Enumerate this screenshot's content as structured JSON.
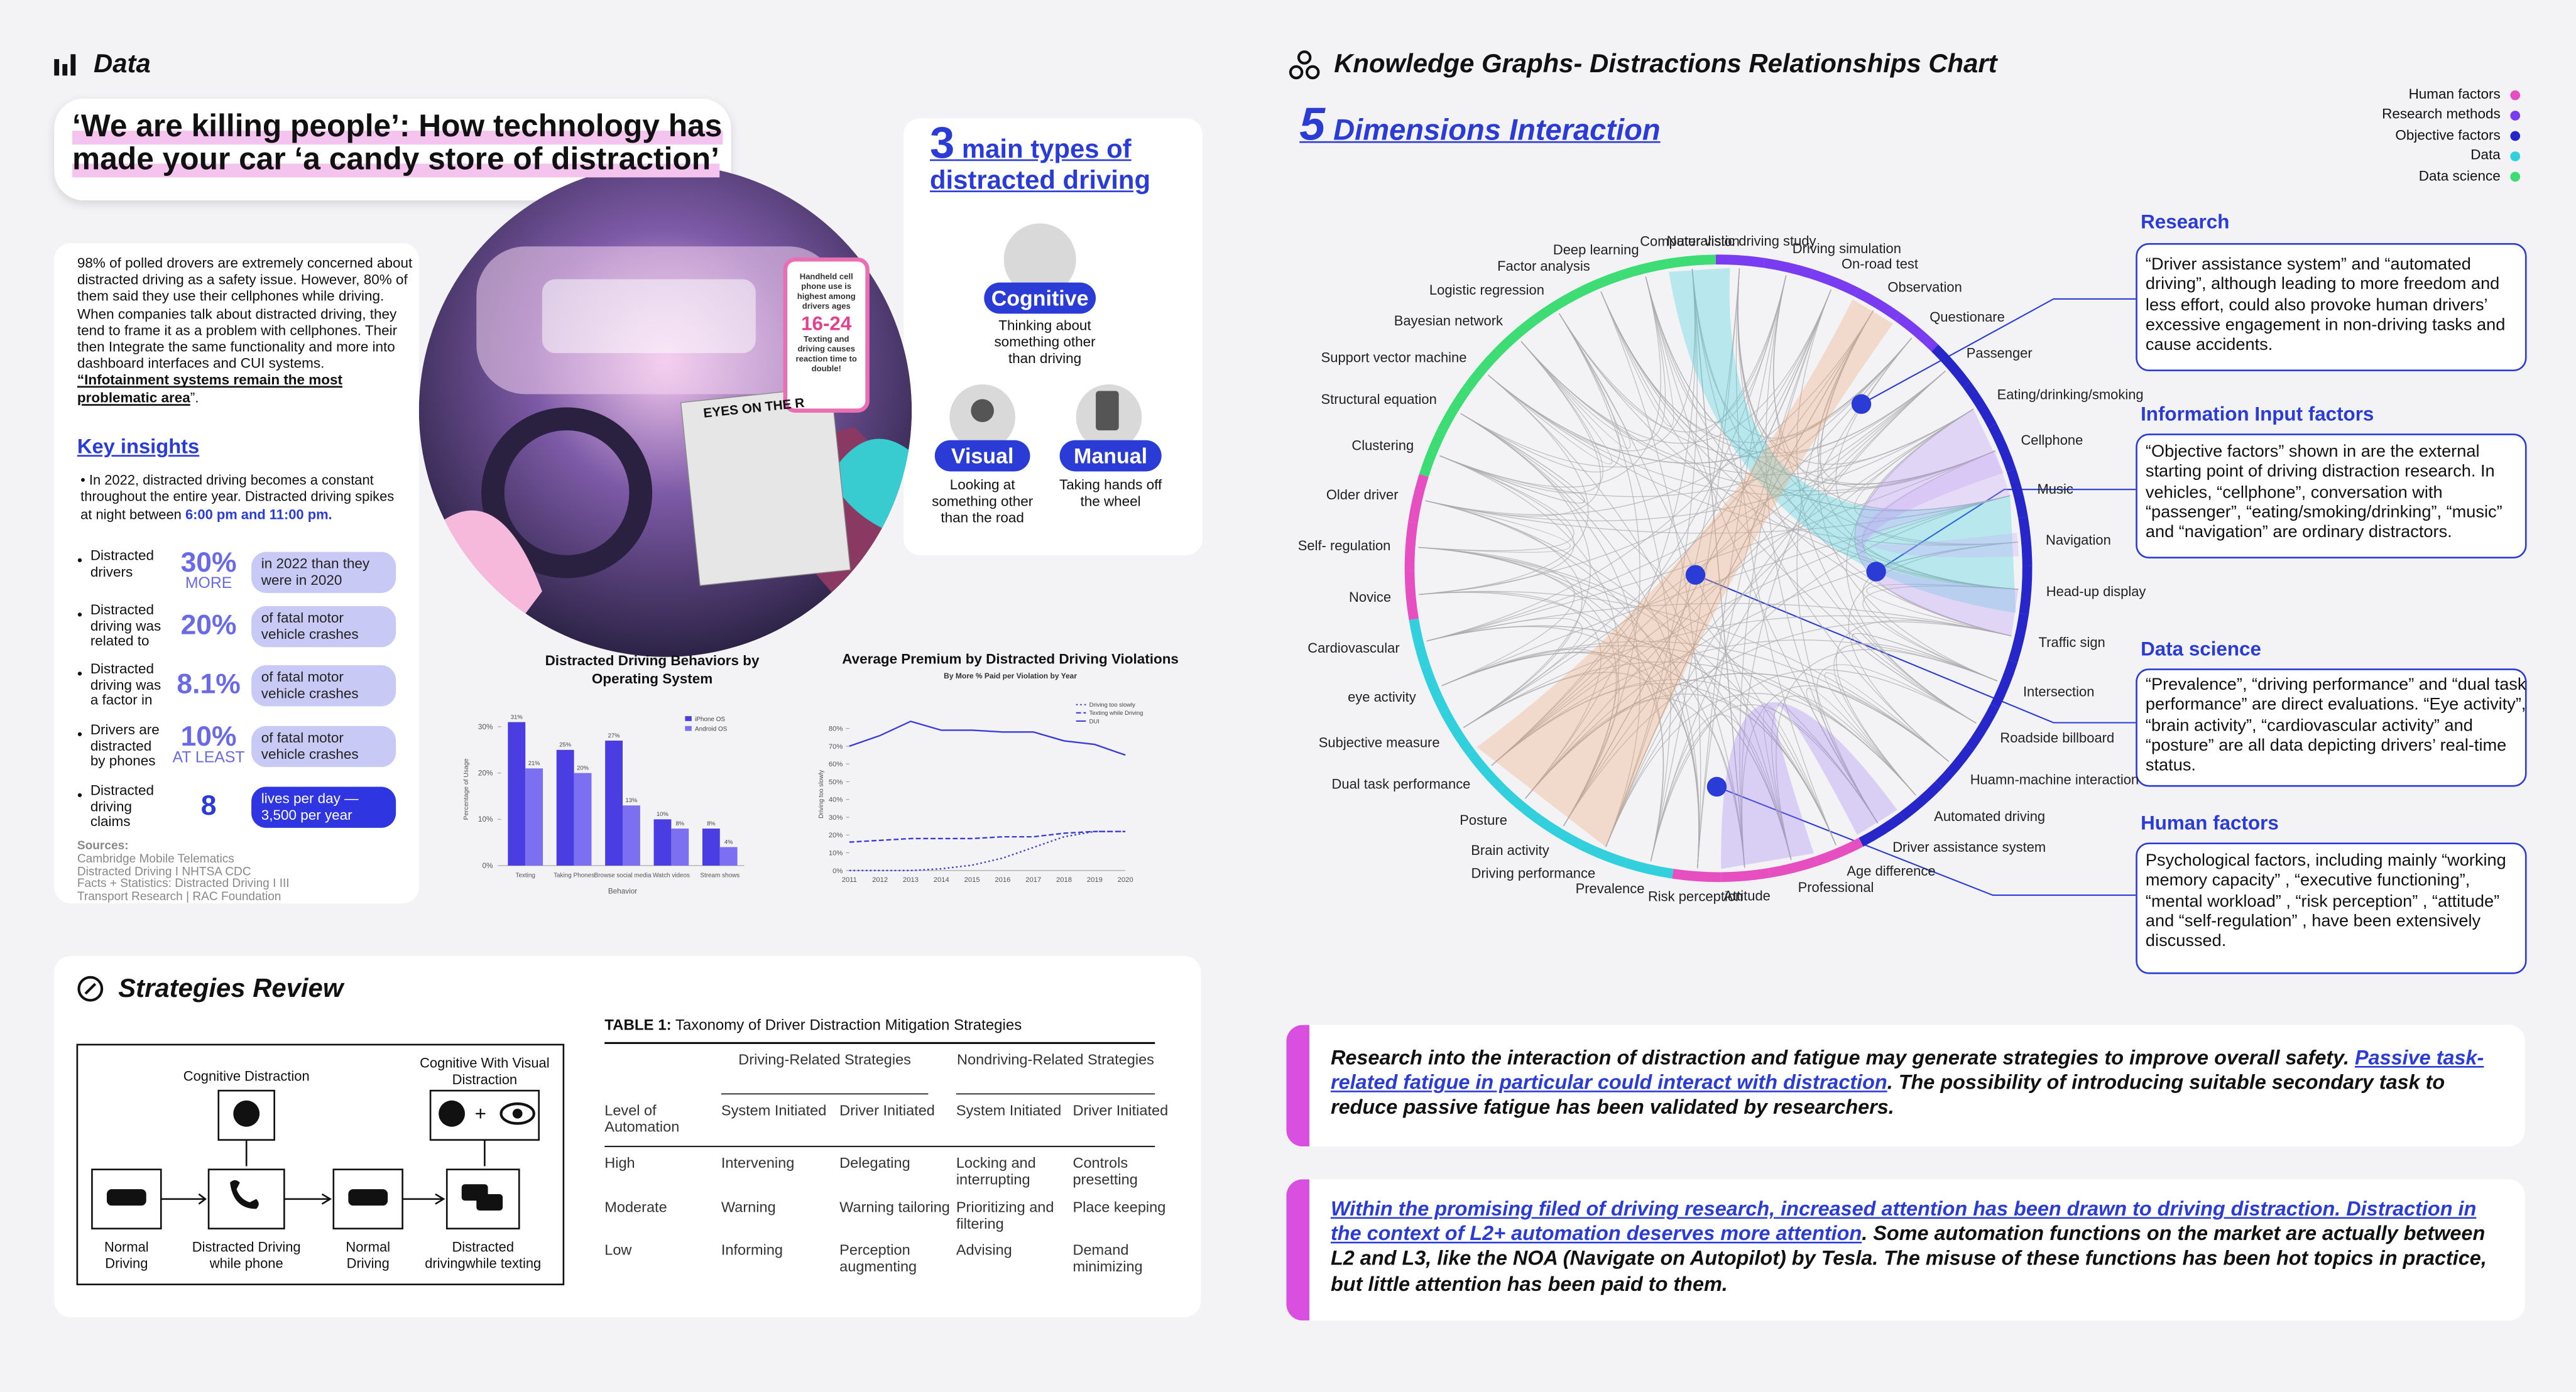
{
  "data_section": {
    "title": "Data",
    "headline": [
      "‘We are killing people’: How technology has",
      "made your car ‘a candy store of distraction’"
    ],
    "intro": {
      "text": "98% of polled drovers are extremely concerned about distracted driving as a safety issue. However, 80% of them said they use their cellphones while driving.\nWhen companies talk about distracted driving, they tend to frame it as a problem with cellphones. Their then Integrate the same functionality and more into dashboard interfaces and CUI systems. ",
      "quote": "“Infotainment systems remain the most problematic area",
      "end": "”."
    },
    "key_insights": {
      "title": "Key insights",
      "text": "In 2022, distracted driving becomes a constant throughout the entire year. Distracted driving spikes at night between ",
      "highlight": "6:00 pm and 11:00 pm."
    },
    "stats": [
      {
        "label": "Distracted drivers",
        "value": "30%",
        "sub": "MORE",
        "note": "in 2022 than they were in 2020"
      },
      {
        "label": "Distracted driving was related to",
        "value": "20%",
        "note": "of fatal motor vehicle crashes"
      },
      {
        "label": "Distracted driving was a factor in",
        "value": "8.1%",
        "note": "of fatal motor vehicle crashes"
      },
      {
        "label": "Drivers are distracted by phones",
        "value": "10%",
        "sub": "AT LEAST",
        "note": "of fatal motor vehicle crashes"
      },
      {
        "label": "Distracted driving claims",
        "value": "8",
        "note": "lives per day — 3,500 per year"
      }
    ],
    "sources": {
      "title": "Sources:",
      "items": [
        "Cambridge Mobile Telematics",
        "Distracted Driving I NHTSA CDC",
        "Facts + Statistics: Distracted Driving I III",
        "Transport Research | RAC Foundation"
      ]
    }
  },
  "illustration": {
    "phone_card": [
      "Handheld cell phone use is highest among drivers ages",
      "16-24",
      "Texting and driving causes reaction time to double!"
    ],
    "newspaper": "EYES ON THE R"
  },
  "types": {
    "count": "3",
    "title": "main types of distracted driving",
    "items": [
      {
        "name": "Cognitive",
        "desc": "Thinking about something other than driving"
      },
      {
        "name": "Visual",
        "desc": "Looking at something other than the road"
      },
      {
        "name": "Manual",
        "desc": "Taking hands off the wheel"
      }
    ]
  },
  "chart_data": [
    {
      "type": "bar",
      "title": "Distracted Driving Behaviors by Operating System",
      "xlabel": "Behavior",
      "ylabel": "Percentage of Usage",
      "categories": [
        "Texting",
        "Taking Phones",
        "Browse social media",
        "Watch videos",
        "Stream shows"
      ],
      "series": [
        {
          "name": "iPhone OS",
          "color": "#4a3ee3",
          "values": [
            31,
            25,
            27,
            10,
            8
          ],
          "value_labels": [
            "31%",
            "25%",
            "27%",
            "10%",
            "8%"
          ]
        },
        {
          "name": "Android OS",
          "color": "#7c70f0",
          "values": [
            21,
            20,
            13,
            8,
            4
          ],
          "value_labels": [
            "21%",
            "20%",
            "13%",
            "8%",
            "4%"
          ]
        }
      ],
      "ylim": [
        0,
        33
      ],
      "yticks": [
        {
          "value": 0,
          "label": "0%"
        },
        {
          "value": 10,
          "label": "10%"
        },
        {
          "value": 20,
          "label": "20%"
        },
        {
          "value": 30,
          "label": "30%"
        }
      ],
      "legend": "upper right"
    },
    {
      "type": "line",
      "title": "Average Premium by Distracted Driving Violations",
      "subtitle": "By More % Paid per Violation by Year",
      "ylabel": "Driving too slowly",
      "categories": [
        "2011",
        "2012",
        "2013",
        "2014",
        "2015",
        "2016",
        "2017",
        "2018",
        "2019",
        "2020"
      ],
      "series": [
        {
          "name": "Driving too slowly",
          "color": "#3b3bdc",
          "dash": "1 1.5",
          "values": [
            0,
            0,
            0,
            1,
            3,
            7,
            13,
            19,
            22,
            22
          ]
        },
        {
          "name": "Texting while Driving",
          "color": "#3b3bdc",
          "dash": "3 1.5",
          "values": [
            16,
            17,
            18,
            18,
            18,
            19,
            19,
            21,
            22,
            22
          ]
        },
        {
          "name": "DUI",
          "color": "#3b3bdc",
          "dash": "",
          "values": [
            70,
            76,
            84,
            79,
            79,
            78,
            78,
            73,
            71,
            65
          ]
        }
      ],
      "ylim": [
        0,
        86
      ],
      "yticks": [
        {
          "value": 0,
          "label": "0%"
        },
        {
          "value": 10,
          "label": "10%"
        },
        {
          "value": 20,
          "label": "20%"
        },
        {
          "value": 30,
          "label": "30%"
        },
        {
          "value": 40,
          "label": "40%"
        },
        {
          "value": 50,
          "label": "50%"
        },
        {
          "value": 60,
          "label": "60%"
        },
        {
          "value": 70,
          "label": "70%"
        },
        {
          "value": 80,
          "label": "80%"
        }
      ],
      "legend": "upper right"
    }
  ],
  "strategies": {
    "title": "Strategies Review",
    "diagram": {
      "cognitive": "Cognitive Distraction",
      "cognitive_visual": "Cognitive With Visual Distraction",
      "steps": [
        "Normal Driving",
        "Distracted Driving while phone",
        "Normal Driving",
        "Distracted drivingwhile texting"
      ]
    },
    "table": {
      "label": "TABLE 1:",
      "caption": " Taxonomy of Driver Distraction Mitigation Strategies",
      "groups": [
        "Driving-Related Strategies",
        "Nondriving-Related Strategies"
      ],
      "columns": [
        "Level of Automation",
        "System Initiated",
        "Driver Initiated",
        "System Initiated",
        "Driver Initiated"
      ],
      "rows": [
        [
          "High",
          "Intervening",
          "Delegating",
          "Locking and interrupting",
          "Controls presetting"
        ],
        [
          "Moderate",
          "Warning",
          "Warning tailoring",
          "Prioritizing and filtering",
          "Place keeping"
        ],
        [
          "Low",
          "Informing",
          "Perception augmenting",
          "Advising",
          "Demand minimizing"
        ]
      ]
    }
  },
  "knowledge_graph": {
    "title": "Knowledge Graphs- Distractions Relationships Chart",
    "number": "5",
    "subtitle": "Dimensions Interaction",
    "groups": [
      {
        "name": "Human factors",
        "color": "#e64fc0"
      },
      {
        "name": "Research methods",
        "color": "#7a3cf0"
      },
      {
        "name": "Objective factors",
        "color": "#2727c9"
      },
      {
        "name": "Data",
        "color": "#31d0dc"
      },
      {
        "name": "Data science",
        "color": "#3ddc74"
      }
    ],
    "nodes": [
      {
        "label": "Naturalistic driving study",
        "group": "Research methods"
      },
      {
        "label": "Driving simulation",
        "group": "Research methods"
      },
      {
        "label": "On-road test",
        "group": "Research methods"
      },
      {
        "label": "Observation",
        "group": "Research methods"
      },
      {
        "label": "Questionare",
        "group": "Research methods"
      },
      {
        "label": "Passenger",
        "group": "Objective factors"
      },
      {
        "label": "Eating/drinking/smoking",
        "group": "Objective factors"
      },
      {
        "label": "Cellphone",
        "group": "Objective factors"
      },
      {
        "label": "Music",
        "group": "Objective factors"
      },
      {
        "label": "Navigation",
        "group": "Objective factors"
      },
      {
        "label": "Head-up display",
        "group": "Objective factors"
      },
      {
        "label": "Traffic sign",
        "group": "Objective factors"
      },
      {
        "label": "Intersection",
        "group": "Objective factors"
      },
      {
        "label": "Roadside billboard",
        "group": "Objective factors"
      },
      {
        "label": "Huamn-machine interaction",
        "group": "Objective factors"
      },
      {
        "label": "Automated driving",
        "group": "Objective factors"
      },
      {
        "label": "Driver assistance system",
        "group": "Objective factors"
      },
      {
        "label": "Age difference",
        "group": "Human factors"
      },
      {
        "label": "Professional",
        "group": "Human factors"
      },
      {
        "label": "Attitude",
        "group": "Human factors"
      },
      {
        "label": "Risk perception",
        "group": "Human factors"
      },
      {
        "label": "Prevalence",
        "group": "Data"
      },
      {
        "label": "Driving performance",
        "group": "Data"
      },
      {
        "label": "Brain activity",
        "group": "Data"
      },
      {
        "label": "Posture",
        "group": "Data"
      },
      {
        "label": "Dual task performance",
        "group": "Data"
      },
      {
        "label": "Subjective measure",
        "group": "Data"
      },
      {
        "label": "eye activity",
        "group": "Data"
      },
      {
        "label": "Cardiovascular",
        "group": "Data"
      },
      {
        "label": "Novice",
        "group": "Human factors"
      },
      {
        "label": "Self- regulation",
        "group": "Human factors"
      },
      {
        "label": "Older driver",
        "group": "Human factors"
      },
      {
        "label": "Clustering",
        "group": "Data science"
      },
      {
        "label": "Structural equation",
        "group": "Data science"
      },
      {
        "label": "Support vector machine",
        "group": "Data science"
      },
      {
        "label": "Bayesian network",
        "group": "Data science"
      },
      {
        "label": "Logistic regression",
        "group": "Data science"
      },
      {
        "label": "Factor analysis",
        "group": "Data science"
      },
      {
        "label": "Deep learning",
        "group": "Data science"
      },
      {
        "label": "Computer vision",
        "group": "Data science"
      }
    ]
  },
  "panels": [
    {
      "title": "Research",
      "text": "“Driver assistance system” and “automated driving”, although leading to more freedom and less effort, could also provoke human drivers’ excessive engagement in non-driving tasks and cause accidents."
    },
    {
      "title": "Information Input factors",
      "text": "“Objective factors” shown in are the external starting point of driving distraction research. In vehicles, “cellphone”, conversation with “passenger”, “eating/smoking/drinking”, “music” and “navigation” are ordinary distractors."
    },
    {
      "title": "Data science",
      "text": "“Prevalence”, “driving performance” and “dual task performance” are direct evaluations. “Eye activity”, “brain activity”, “cardiovascular activity” and “posture” are all data depicting drivers’ real-time status."
    },
    {
      "title": "Human factors",
      "text": "Psychological factors, including mainly “working memory capacity” , “executive functioning”, “mental workload” , “risk perception” , “attitude” and “self-regulation” , have been extensively discussed."
    }
  ],
  "notes": [
    {
      "lead": "Research into the interaction of distraction and fatigue may generate strategies to improve overall safety. ",
      "link": "Passive task-related fatigue in particular could interact with distraction",
      "rest": ". The possibility of introducing suitable secondary task to reduce passive fatigue has been validated by researchers."
    },
    {
      "lead": "",
      "link": "Within the promising filed of driving research, increased attention has been drawn to driving distraction. Distraction in the context of L2+ automation deserves more attention",
      "rest": ". Some automation functions on the market are actually between L2 and L3, like the NOA (Navigate on Autopilot) by Tesla. The misuse of these functions has been hot topics in practice, but little attention has been paid to them."
    }
  ]
}
